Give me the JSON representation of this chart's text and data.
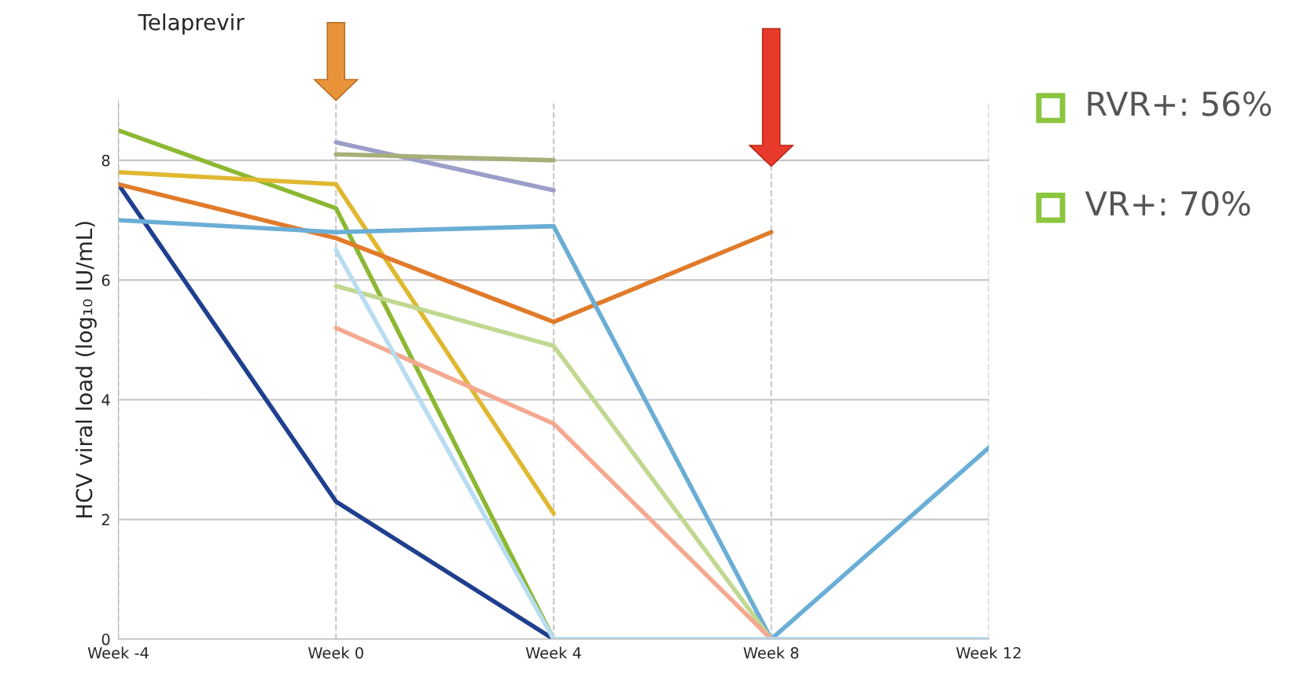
{
  "chart_data": {
    "type": "line",
    "ylabel": "HCV viral load (log₁₀ IU/mL)",
    "categories": [
      "Week -4",
      "Week 0",
      "Week 4",
      "Week 8",
      "Week 12"
    ],
    "series": [
      {
        "color": "#1f3f8f",
        "values": [
          7.6,
          2.3,
          0,
          null,
          null
        ]
      },
      {
        "color": "#8cb832",
        "values": [
          8.5,
          7.2,
          0,
          null,
          null
        ]
      },
      {
        "color": "#e0b830",
        "values": [
          7.8,
          7.6,
          2.1,
          null,
          null
        ]
      },
      {
        "color": "#e07b2a",
        "values": [
          7.6,
          6.7,
          5.3,
          6.8,
          null
        ]
      },
      {
        "color": "#6aaed6",
        "values": [
          7.0,
          6.8,
          6.9,
          0,
          3.2
        ]
      },
      {
        "color": "#9a9ec8",
        "values": [
          null,
          8.3,
          7.5,
          null,
          null
        ]
      },
      {
        "color": "#a8ae78",
        "values": [
          null,
          8.1,
          8.0,
          null,
          null
        ]
      },
      {
        "color": "#c0d890",
        "values": [
          null,
          5.9,
          4.9,
          0,
          null
        ]
      },
      {
        "color": "#f4a990",
        "values": [
          null,
          5.2,
          3.6,
          0,
          null
        ]
      },
      {
        "color": "#b8dcf0",
        "values": [
          null,
          6.5,
          0,
          0,
          0
        ]
      }
    ],
    "ylim": [
      0,
      9
    ],
    "yticks": [
      0,
      2,
      4,
      6,
      8
    ],
    "grid": true,
    "line_style": "solid",
    "annotations": [
      "Telaprevir",
      "RVR+: 56%",
      "VR+: 70%"
    ]
  }
}
